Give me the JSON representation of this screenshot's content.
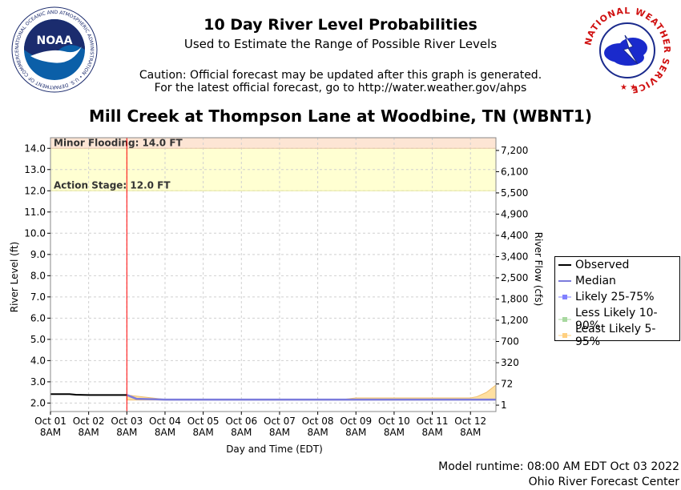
{
  "header": {
    "title": "10 Day River Level Probabilities",
    "subtitle": "Used to Estimate the Range of Possible River Levels",
    "caution_line1": "Caution: Official forecast may be updated after this graph is generated.",
    "caution_line2": "For the latest official forecast, go to http://water.weather.gov/ahps",
    "station": "Mill Creek at Thompson Lane at Woodbine, TN (WBNT1)"
  },
  "logos": {
    "left": {
      "icon": "noaa-logo",
      "text": "NOAA",
      "ring_text": "NATIONAL OCEANIC AND ATMOSPHERIC ADMINISTRATION • U.S. DEPARTMENT OF COMMERCE"
    },
    "right": {
      "icon": "nws-logo",
      "ring_text": "NATIONAL WEATHER SERVICE"
    }
  },
  "footer": {
    "runtime": "Model runtime: 08:00 AM EDT Oct 03 2022",
    "center": "Ohio River Forecast Center"
  },
  "legend": {
    "items": [
      {
        "label": "Observed",
        "color": "#000000",
        "style": "line"
      },
      {
        "label": "Median",
        "color": "#7b7bdc",
        "style": "line"
      },
      {
        "label": "Likely 25-75%",
        "color": "#8080ff",
        "style": "band-marker"
      },
      {
        "label": "Less Likely 10-90%",
        "color": "#a8d8a0",
        "style": "band-marker"
      },
      {
        "label": "Least Likely 5-95%",
        "color": "#ffd080",
        "style": "band-marker"
      }
    ]
  },
  "chart_data": {
    "type": "line",
    "title": "Mill Creek at Thompson Lane at Woodbine, TN (WBNT1)",
    "xlabel": "Day and Time (EDT)",
    "ylabel": "River Level (ft)",
    "ylabel_right": "River Flow (cfs)",
    "ylim": [
      1.6,
      14.5
    ],
    "xlim": [
      "2022-10-01 08:00",
      "2022-10-13 00:00"
    ],
    "y_ticks": [
      2.0,
      3.0,
      4.0,
      5.0,
      6.0,
      7.0,
      8.0,
      9.0,
      10.0,
      11.0,
      12.0,
      13.0,
      14.0
    ],
    "y_tick_labels": [
      "2.0",
      "3.0",
      "4.0",
      "5.0",
      "6.0",
      "7.0",
      "8.0",
      "9.0",
      "10.0",
      "11.0",
      "12.0",
      "13.0",
      "14.0"
    ],
    "right_ticks": [
      {
        "stage": 1.9,
        "label": "1"
      },
      {
        "stage": 2.9,
        "label": "72"
      },
      {
        "stage": 3.9,
        "label": "320"
      },
      {
        "stage": 4.9,
        "label": "700"
      },
      {
        "stage": 5.9,
        "label": "1,200"
      },
      {
        "stage": 6.9,
        "label": "1,800"
      },
      {
        "stage": 7.9,
        "label": "2,500"
      },
      {
        "stage": 8.9,
        "label": "3,400"
      },
      {
        "stage": 9.9,
        "label": "4,400"
      },
      {
        "stage": 10.9,
        "label": "4,900"
      },
      {
        "stage": 11.9,
        "label": "5,500"
      },
      {
        "stage": 12.9,
        "label": "6,100"
      },
      {
        "stage": 13.9,
        "label": "7,200"
      }
    ],
    "x_ticks": [
      {
        "time": "2022-10-01 08:00",
        "label_line1": "Oct 01",
        "label_line2": "8AM"
      },
      {
        "time": "2022-10-02 08:00",
        "label_line1": "Oct 02",
        "label_line2": "8AM"
      },
      {
        "time": "2022-10-03 08:00",
        "label_line1": "Oct 03",
        "label_line2": "8AM"
      },
      {
        "time": "2022-10-04 08:00",
        "label_line1": "Oct 04",
        "label_line2": "8AM"
      },
      {
        "time": "2022-10-05 08:00",
        "label_line1": "Oct 05",
        "label_line2": "8AM"
      },
      {
        "time": "2022-10-06 08:00",
        "label_line1": "Oct 06",
        "label_line2": "8AM"
      },
      {
        "time": "2022-10-07 08:00",
        "label_line1": "Oct 07",
        "label_line2": "8AM"
      },
      {
        "time": "2022-10-08 08:00",
        "label_line1": "Oct 08",
        "label_line2": "8AM"
      },
      {
        "time": "2022-10-09 08:00",
        "label_line1": "Oct 09",
        "label_line2": "8AM"
      },
      {
        "time": "2022-10-10 08:00",
        "label_line1": "Oct 10",
        "label_line2": "8AM"
      },
      {
        "time": "2022-10-11 08:00",
        "label_line1": "Oct 11",
        "label_line2": "8AM"
      },
      {
        "time": "2022-10-12 08:00",
        "label_line1": "Oct 12",
        "label_line2": "8AM"
      }
    ],
    "flood_levels": [
      {
        "label": "Minor Flooding: 14.0 FT",
        "from": 14.0,
        "to": 14.5,
        "color": "#fde5d4"
      },
      {
        "label": "Action Stage: 12.0 FT",
        "from": 12.0,
        "to": 14.0,
        "color": "#ffffd2"
      }
    ],
    "forecast_start": "2022-10-03 08:00",
    "forecast_start_color": "#ff0000",
    "series": [
      {
        "name": "Observed",
        "color": "#000000",
        "x": [
          "2022-10-01 08:00",
          "2022-10-01 20:00",
          "2022-10-02 00:00",
          "2022-10-02 08:00",
          "2022-10-02 20:00",
          "2022-10-03 08:00"
        ],
        "y": [
          2.42,
          2.42,
          2.39,
          2.38,
          2.38,
          2.38
        ]
      },
      {
        "name": "Median",
        "color": "#7b7bdc",
        "x": [
          "2022-10-03 08:00",
          "2022-10-03 14:00",
          "2022-10-04 00:00",
          "2022-10-04 08:00",
          "2022-10-13 00:00"
        ],
        "y": [
          2.38,
          2.2,
          2.18,
          2.16,
          2.16
        ]
      },
      {
        "name": "Least Likely 5-95%",
        "color": "#ffd080",
        "upper_x": [
          "2022-10-03 08:00",
          "2022-10-04 08:00",
          "2022-10-09 00:00",
          "2022-10-09 08:00",
          "2022-10-12 08:00",
          "2022-10-12 12:00",
          "2022-10-12 18:00",
          "2022-10-13 00:00"
        ],
        "upper_y": [
          2.38,
          2.17,
          2.17,
          2.24,
          2.24,
          2.3,
          2.5,
          2.85
        ],
        "lower_y": 2.14
      }
    ],
    "grid": true,
    "legend_position": "right"
  }
}
